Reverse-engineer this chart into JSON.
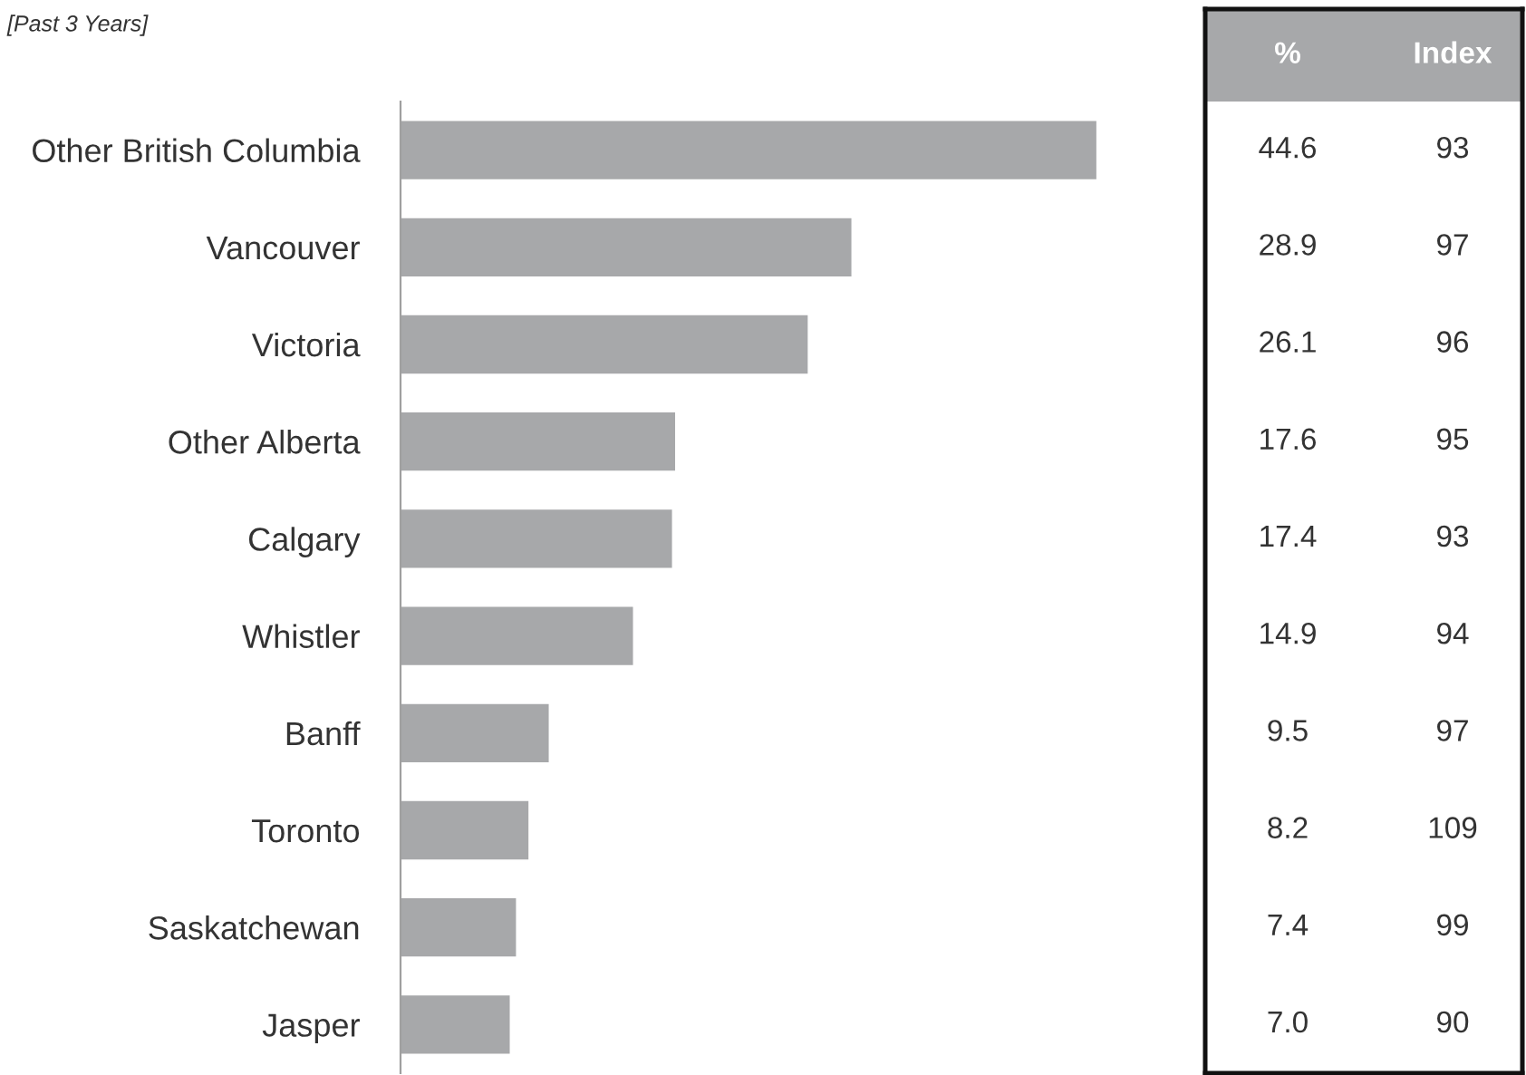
{
  "chart_data": {
    "type": "bar",
    "orientation": "horizontal",
    "title": "[Past 3 Years]",
    "categories": [
      "Other British Columbia",
      "Vancouver",
      "Victoria",
      "Other Alberta",
      "Calgary",
      "Whistler",
      "Banff",
      "Toronto",
      "Saskatchewan",
      "Jasper"
    ],
    "values": [
      44.6,
      28.9,
      26.1,
      17.6,
      17.4,
      14.9,
      9.5,
      8.2,
      7.4,
      7.0
    ],
    "value_labels": [
      "44.6",
      "28.9",
      "26.1",
      "17.6",
      "17.4",
      "14.9",
      "9.5",
      "8.2",
      "7.4",
      "7.0"
    ],
    "color": "#a7a8aa",
    "grid": false,
    "legend": false,
    "tick_labels": "y",
    "annotations": [
      "%",
      "Index",
      "93",
      "97",
      "96",
      "95",
      "93",
      "94",
      "97",
      "109",
      "99",
      "90"
    ]
  }
}
